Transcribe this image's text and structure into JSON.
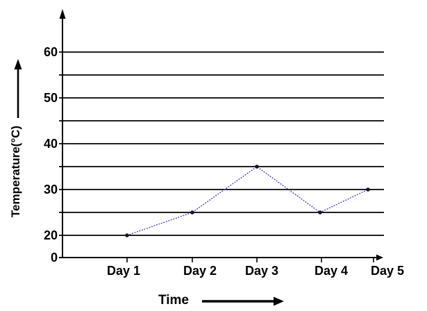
{
  "chart_data": {
    "type": "line",
    "title": "",
    "xlabel": "Time",
    "ylabel": "Temperature(°C)",
    "categories": [
      "Day 1",
      "Day 2",
      "Day 3",
      "Day 4",
      "Day 5"
    ],
    "values": [
      20,
      25,
      35,
      25,
      30
    ],
    "series": [
      {
        "name": "Temperature",
        "values": [
          20,
          25,
          35,
          25,
          30
        ]
      }
    ],
    "y_axis_tick_labels": [
      60,
      50,
      40,
      30,
      20,
      0
    ],
    "y_gridline_values": [
      20,
      25,
      30,
      35,
      40,
      45,
      50,
      55,
      60
    ],
    "ylim": [
      0,
      65
    ],
    "grid": true,
    "legend": "none",
    "marker_style": "filled-circle",
    "line_style": "dotted",
    "colors": {
      "line": "#3f3fae",
      "marker": "#14142b",
      "axis": "#000000",
      "text": "#000000",
      "background": "#ffffff"
    }
  }
}
